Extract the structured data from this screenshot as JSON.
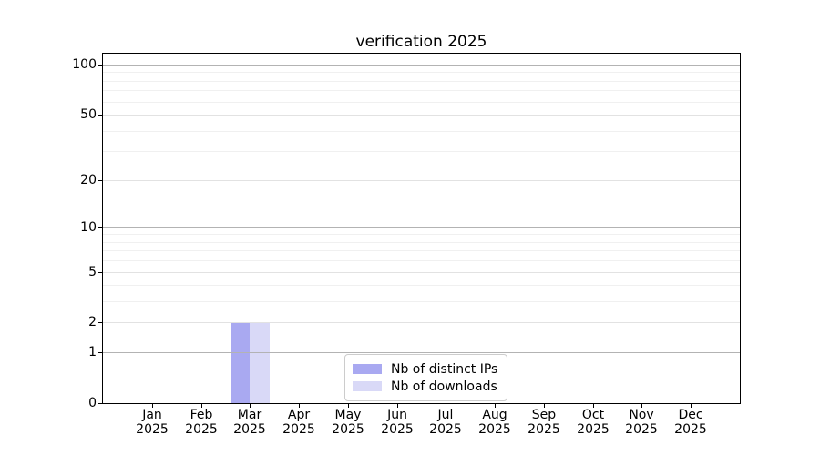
{
  "figure": {
    "background": "#ffffff"
  },
  "chart_data": {
    "type": "bar",
    "title": "verification 2025",
    "categories": [
      "Jan",
      "Feb",
      "Mar",
      "Apr",
      "May",
      "Jun",
      "Jul",
      "Aug",
      "Sep",
      "Oct",
      "Nov",
      "Dec"
    ],
    "x_tick_second_line": "2025",
    "series": [
      {
        "name": "Nb of distinct IPs",
        "color": "#a9a9f1",
        "values": [
          0,
          0,
          2,
          0,
          0,
          0,
          0,
          0,
          0,
          0,
          0,
          0
        ]
      },
      {
        "name": "Nb of downloads",
        "color": "#d9d9f7",
        "values": [
          0,
          0,
          2,
          0,
          0,
          0,
          0,
          0,
          0,
          0,
          0,
          0
        ]
      }
    ],
    "yaxis": {
      "scale": "log1p",
      "ticks": [
        0,
        1,
        2,
        5,
        10,
        20,
        50,
        100
      ],
      "minor_ticks": [
        3,
        4,
        6,
        7,
        8,
        9,
        30,
        40,
        60,
        70,
        80,
        90
      ],
      "decade_ticks": [
        1,
        10,
        100
      ],
      "max": 116
    },
    "xlabel": "",
    "ylabel": "",
    "grid": true,
    "legend_position": "lower center",
    "colors": {
      "decade_grid": "#b3b3b3",
      "major_grid": "#e2e2e2",
      "minor_grid": "#f0f0f0",
      "axis": "#000000",
      "text": "#000000",
      "legend_border": "#cccccc"
    }
  }
}
